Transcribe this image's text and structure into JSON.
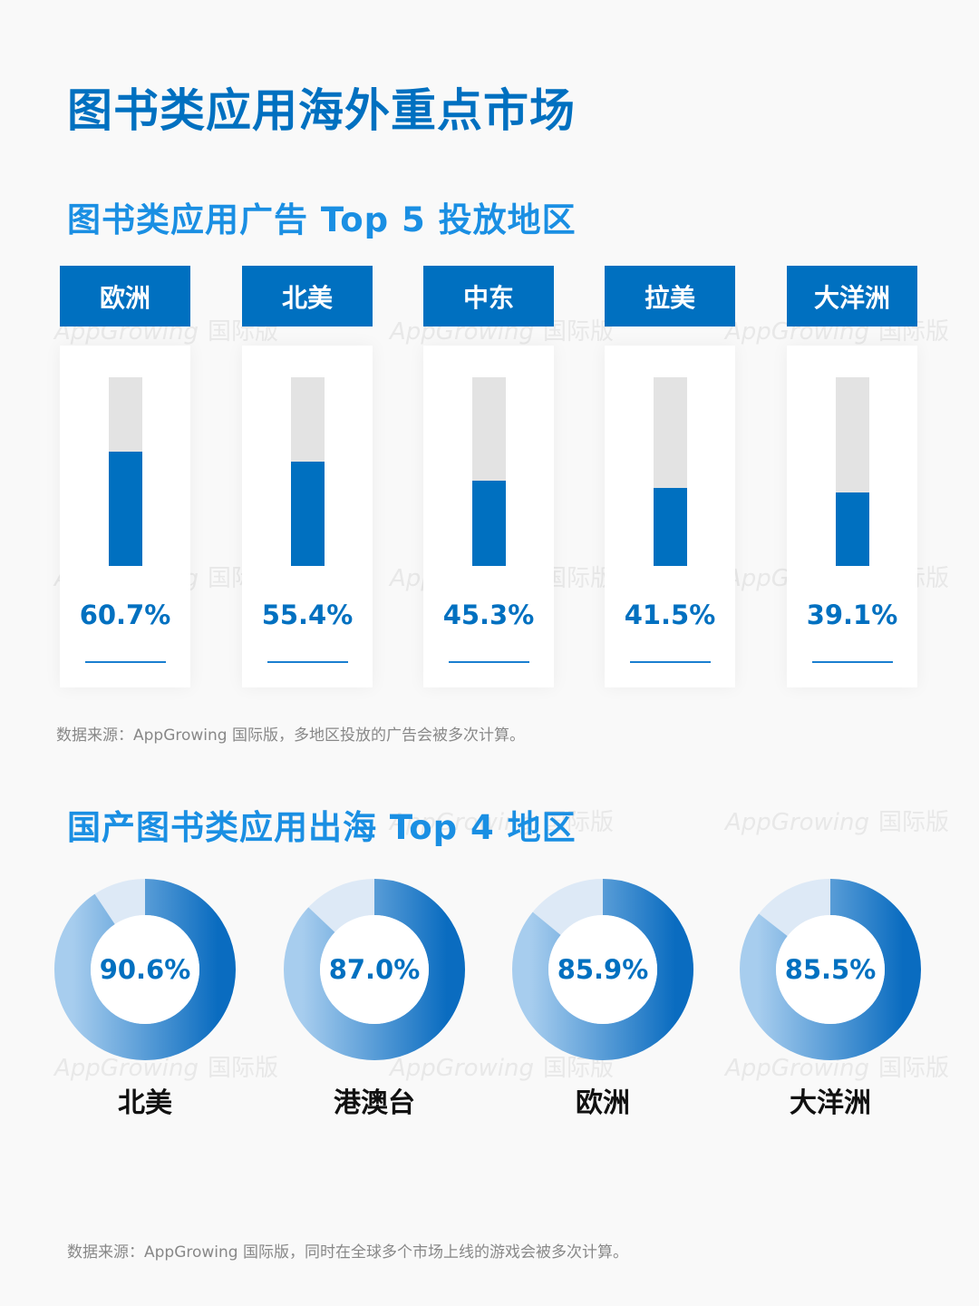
{
  "title": "图书类应用海外重点市场",
  "section1": {
    "title": "图书类应用广告 Top 5 投放地区",
    "note": "数据来源：AppGrowing 国际版，多地区投放的广告会被多次计算。"
  },
  "section2": {
    "title": "国产图书类应用出海 Top 4 地区",
    "note": "数据来源：AppGrowing 国际版，同时在全球多个市场上线的游戏会被多次计算。"
  },
  "watermark": {
    "en": "AppGrowing",
    "cn": "国际版"
  },
  "colors": {
    "primary": "#0070c0",
    "subtitle": "#1a8fe3",
    "track": "#e3e3e3",
    "donut_light": "#dde9f6",
    "donut_grad_top": "#a7cdee",
    "donut_grad_bottom": "#0a6cc0"
  },
  "chart_data": [
    {
      "type": "bar",
      "title": "图书类应用广告 Top 5 投放地区",
      "categories": [
        "欧洲",
        "北美",
        "中东",
        "拉美",
        "大洋洲"
      ],
      "values": [
        60.7,
        55.4,
        45.3,
        41.5,
        39.1
      ],
      "labels": [
        "60.7%",
        "55.4%",
        "45.3%",
        "41.5%",
        "39.1%"
      ],
      "unit": "%",
      "ylim": [
        0,
        100
      ],
      "orientation": "vertical progress bars",
      "grid": false,
      "legend": "none"
    },
    {
      "type": "pie",
      "subtype": "donut",
      "title": "国产图书类应用出海 Top 4 地区",
      "categories": [
        "北美",
        "港澳台",
        "欧洲",
        "大洋洲"
      ],
      "values": [
        90.6,
        87.0,
        85.9,
        85.5
      ],
      "labels": [
        "90.6%",
        "87.0%",
        "85.9%",
        "85.5%"
      ],
      "unit": "%",
      "legend": "none"
    }
  ]
}
